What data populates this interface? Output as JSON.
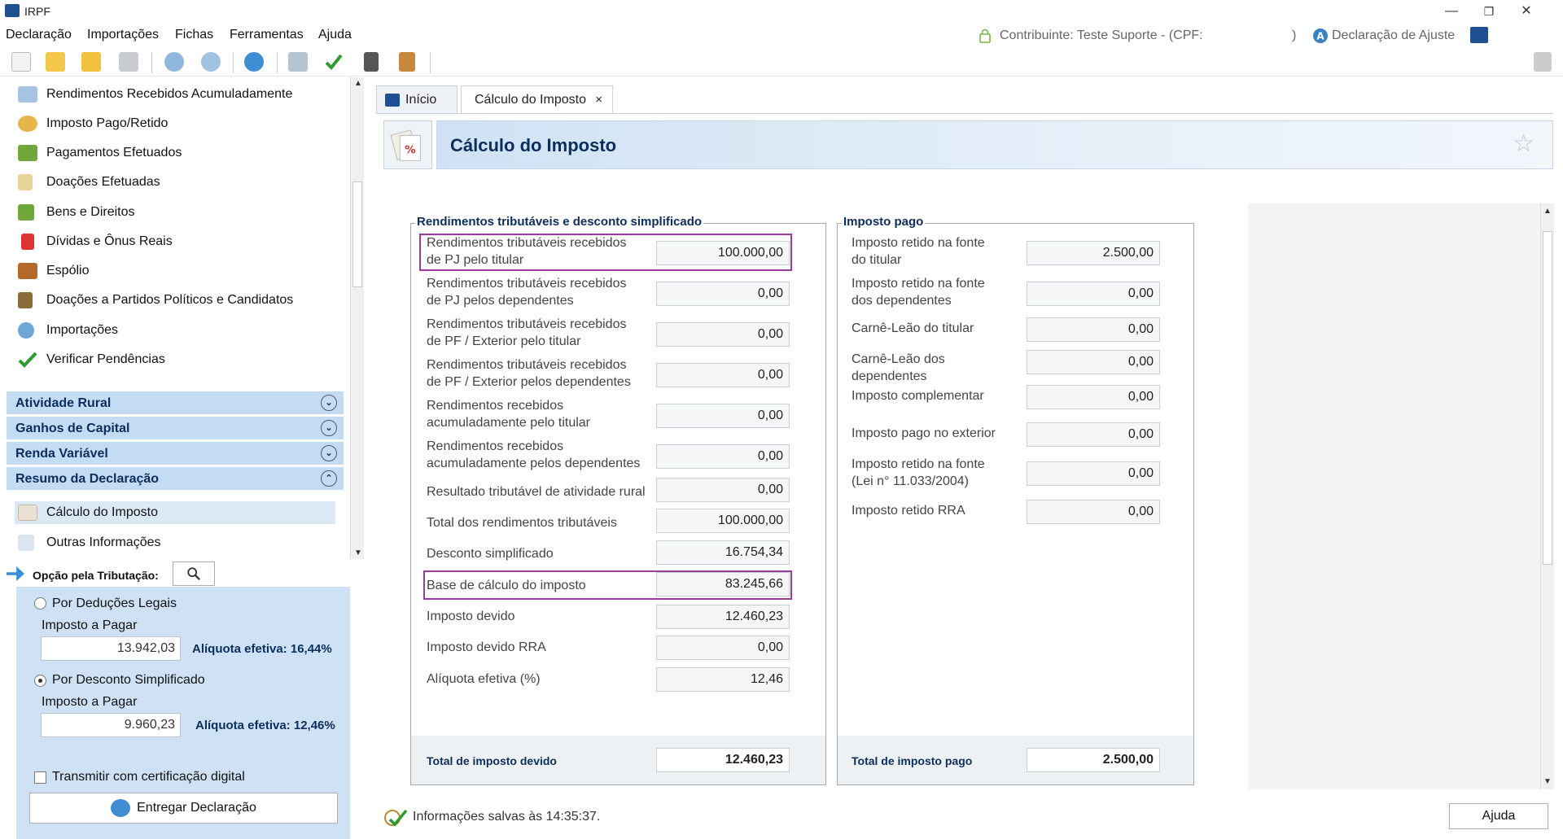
{
  "window": {
    "title": "IRPF",
    "minimize": "—",
    "restore": "❐",
    "close": "✕"
  },
  "menu": {
    "items": [
      "Declaração",
      "Importações",
      "Fichas",
      "Ferramentas",
      "Ajuda"
    ],
    "contribuinte": "Contribuinte: Teste Suporte - (CPF:",
    "contribuinte_end": ")",
    "declaracao": "Declaração de Ajuste"
  },
  "nav": {
    "items": [
      {
        "label": "Rendimentos Recebidos Acumuladamente",
        "icon": "accumulated-income-icon"
      },
      {
        "label": "Imposto Pago/Retido",
        "icon": "tax-paid-icon"
      },
      {
        "label": "Pagamentos Efetuados",
        "icon": "payments-icon"
      },
      {
        "label": "Doações Efetuadas",
        "icon": "donations-icon"
      },
      {
        "label": "Bens e Direitos",
        "icon": "assets-icon"
      },
      {
        "label": "Dívidas e Ônus Reais",
        "icon": "debts-icon"
      },
      {
        "label": "Espólio",
        "icon": "estate-icon"
      },
      {
        "label": "Doações a Partidos Políticos e Candidatos",
        "icon": "political-donations-icon"
      },
      {
        "label": "Importações",
        "icon": "import-icon"
      },
      {
        "label": "Verificar Pendências",
        "icon": "check-icon"
      }
    ],
    "groups": [
      "Atividade Rural",
      "Ganhos de Capital",
      "Renda Variável",
      "Resumo da Declaração"
    ],
    "subitems": [
      {
        "label": "Cálculo do Imposto",
        "icon": "tax-calc-icon"
      },
      {
        "label": "Outras Informações",
        "icon": "info-icon"
      }
    ]
  },
  "opcao": {
    "header": "Opção pela Tributação:",
    "deducoes_label": "Por Deduções Legais",
    "imposto_pagar_1": "Imposto a Pagar",
    "deducoes_valor": "13.942,03",
    "deducoes_aliquota": "Alíquota efetiva: 16,44%",
    "simplificado_label": "Por Desconto Simplificado",
    "imposto_pagar_2": "Imposto a Pagar",
    "simplificado_valor": "9.960,23",
    "simplificado_aliquota": "Alíquota efetiva: 12,46%",
    "transmitir_label": "Transmitir com certificação digital",
    "entregar_label": "Entregar Declaração"
  },
  "tabs": {
    "inicio": "Início",
    "calculo": "Cálculo do Imposto",
    "close": "×"
  },
  "page": {
    "title": "Cálculo do Imposto",
    "star": "☆"
  },
  "rendimentos": {
    "legend": "Rendimentos tributáveis e desconto simplificado",
    "rows": [
      {
        "l1": "Rendimentos tributáveis recebidos",
        "l2": "de PJ pelo titular",
        "value": "100.000,00"
      },
      {
        "l1": "Rendimentos tributáveis recebidos",
        "l2": "de PJ pelos dependentes",
        "value": "0,00"
      },
      {
        "l1": "Rendimentos tributáveis recebidos",
        "l2": "de PF / Exterior pelo titular",
        "value": "0,00"
      },
      {
        "l1": "Rendimentos tributáveis recebidos",
        "l2": "de PF / Exterior pelos dependentes",
        "value": "0,00"
      },
      {
        "l1": "Rendimentos recebidos",
        "l2": "acumuladamente pelo titular",
        "value": "0,00"
      },
      {
        "l1": "Rendimentos recebidos",
        "l2": "acumuladamente pelos dependentes",
        "value": "0,00"
      },
      {
        "l1": "Resultado tributável de atividade rural",
        "l2": "",
        "value": "0,00"
      },
      {
        "l1": "Total dos rendimentos tributáveis",
        "l2": "",
        "value": "100.000,00"
      },
      {
        "l1": "Desconto simplificado",
        "l2": "",
        "value": "16.754,34"
      },
      {
        "l1": "Base de cálculo do imposto",
        "l2": "",
        "value": "83.245,66"
      },
      {
        "l1": "Imposto devido",
        "l2": "",
        "value": "12.460,23"
      },
      {
        "l1": "Imposto devido RRA",
        "l2": "",
        "value": "0,00"
      },
      {
        "l1": "Alíquota efetiva (%)",
        "l2": "",
        "value": "12,46"
      }
    ],
    "total_label": "Total de imposto devido",
    "total_value": "12.460,23"
  },
  "imposto_pago": {
    "legend": "Imposto pago",
    "rows": [
      {
        "l1": "Imposto retido na fonte",
        "l2": "do titular",
        "value": "2.500,00"
      },
      {
        "l1": "Imposto retido na fonte",
        "l2": "dos dependentes",
        "value": "0,00"
      },
      {
        "l1": "Carnê-Leão do titular",
        "l2": "",
        "value": "0,00"
      },
      {
        "l1": "Carnê-Leão dos",
        "l2": "dependentes",
        "value": "0,00"
      },
      {
        "l1": "Imposto complementar",
        "l2": "",
        "value": "0,00"
      },
      {
        "l1": "Imposto pago no exterior",
        "l2": "",
        "value": "0,00"
      },
      {
        "l1": "Imposto retido na fonte",
        "l2": "(Lei n° 11.033/2004)",
        "value": "0,00"
      },
      {
        "l1": "Imposto retido RRA",
        "l2": "",
        "value": "0,00"
      }
    ],
    "total_label": "Total de imposto pago",
    "total_value": "2.500,00"
  },
  "status": {
    "text": "Informações salvas às 14:35:37.",
    "ajuda": "Ajuda"
  },
  "colors": {
    "accent": "#0c2e5c",
    "highlight": "#9b3a9e",
    "group": "#c3dcf3"
  }
}
